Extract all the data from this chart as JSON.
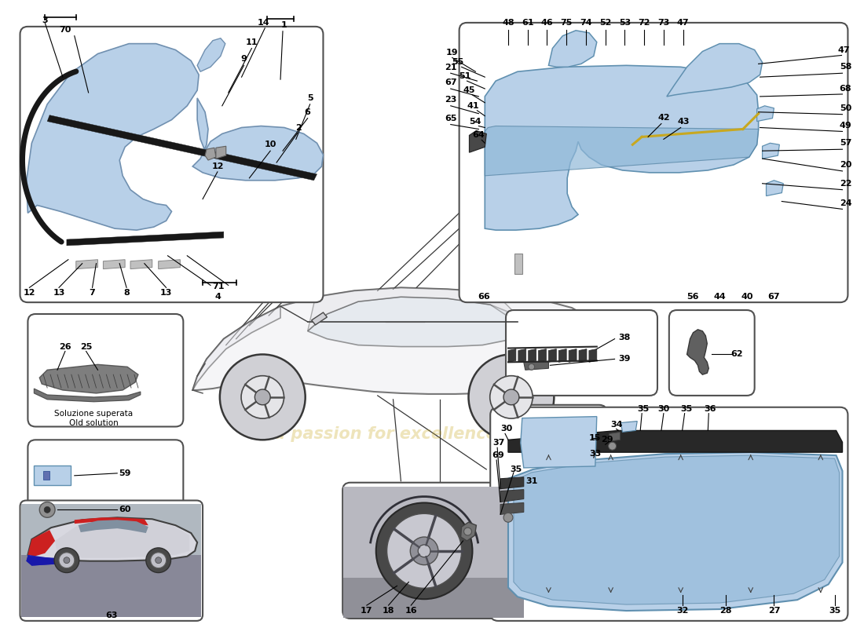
{
  "bg": "#ffffff",
  "blue": "#b8d0e8",
  "blue2": "#90b8d8",
  "dark": "#282828",
  "gray": "#888888",
  "gold": "#c8a820",
  "tc": "#000000",
  "fig_w": 11.0,
  "fig_h": 8.0,
  "dpi": 100,
  "boxes": {
    "tl": [
      20,
      415,
      390,
      355
    ],
    "tr": [
      585,
      415,
      500,
      360
    ],
    "ml1": [
      30,
      255,
      200,
      145
    ],
    "ml2": [
      30,
      90,
      200,
      148
    ],
    "photo": [
      20,
      5,
      235,
      155
    ],
    "rb38": [
      645,
      295,
      195,
      110
    ],
    "rb62": [
      855,
      295,
      110,
      110
    ],
    "rb15": [
      660,
      195,
      115,
      88
    ],
    "bm": [
      435,
      8,
      235,
      175
    ],
    "br": [
      625,
      5,
      460,
      275
    ]
  },
  "tl_numbers": [
    [
      52,
      778,
      "3"
    ],
    [
      78,
      766,
      "70"
    ],
    [
      333,
      775,
      "14"
    ],
    [
      360,
      772,
      "1"
    ],
    [
      318,
      750,
      "11"
    ],
    [
      308,
      728,
      "9"
    ],
    [
      393,
      678,
      "5"
    ],
    [
      378,
      640,
      "2"
    ],
    [
      390,
      660,
      "6"
    ],
    [
      342,
      618,
      "10"
    ],
    [
      275,
      590,
      "12"
    ],
    [
      32,
      427,
      "12"
    ],
    [
      70,
      427,
      "13"
    ],
    [
      113,
      427,
      "7"
    ],
    [
      157,
      427,
      "8"
    ],
    [
      208,
      427,
      "13"
    ],
    [
      275,
      435,
      "71"
    ],
    [
      275,
      422,
      "4"
    ]
  ],
  "tr_top": [
    [
      648,
      775,
      "48"
    ],
    [
      673,
      775,
      "61"
    ],
    [
      698,
      775,
      "46"
    ],
    [
      723,
      775,
      "75"
    ],
    [
      748,
      775,
      "74"
    ],
    [
      773,
      775,
      "52"
    ],
    [
      798,
      775,
      "53"
    ],
    [
      823,
      775,
      "72"
    ],
    [
      848,
      775,
      "73"
    ],
    [
      873,
      775,
      "47"
    ]
  ],
  "tr_left": [
    [
      576,
      737,
      "19"
    ],
    [
      574,
      717,
      "21"
    ],
    [
      574,
      698,
      "67"
    ],
    [
      574,
      676,
      "23"
    ],
    [
      574,
      652,
      "65"
    ],
    [
      583,
      724,
      "55"
    ],
    [
      592,
      706,
      "51"
    ],
    [
      598,
      688,
      "45"
    ],
    [
      603,
      668,
      "41"
    ],
    [
      606,
      648,
      "54"
    ],
    [
      610,
      630,
      "64"
    ]
  ],
  "tr_right": [
    [
      1080,
      740,
      "47"
    ],
    [
      1082,
      718,
      "58"
    ],
    [
      1082,
      690,
      "68"
    ],
    [
      1082,
      665,
      "50"
    ],
    [
      1082,
      643,
      "49"
    ],
    [
      1082,
      620,
      "57"
    ],
    [
      1082,
      592,
      "20"
    ],
    [
      1082,
      568,
      "22"
    ],
    [
      1082,
      542,
      "24"
    ],
    [
      848,
      653,
      "42"
    ],
    [
      874,
      648,
      "43"
    ]
  ],
  "tr_bottom": [
    [
      617,
      422,
      "66"
    ],
    [
      885,
      422,
      "56"
    ],
    [
      920,
      422,
      "44"
    ],
    [
      955,
      422,
      "40"
    ],
    [
      990,
      422,
      "67"
    ]
  ],
  "ml1_nums": [
    [
      78,
      358,
      "26"
    ],
    [
      105,
      358,
      "25"
    ]
  ],
  "ml2_nums": [
    [
      155,
      195,
      "59"
    ],
    [
      155,
      148,
      "60"
    ]
  ],
  "photo_num": [
    [
      128,
      12,
      "63"
    ]
  ],
  "rb38_nums": [
    [
      798,
      370,
      "38"
    ],
    [
      798,
      342,
      "39"
    ]
  ],
  "rb62_nums": [
    [
      942,
      348,
      "62"
    ]
  ],
  "rb15_nums": [
    [
      760,
      240,
      "15"
    ]
  ],
  "bm_nums": [
    [
      466,
      18,
      "17"
    ],
    [
      494,
      18,
      "18"
    ],
    [
      523,
      18,
      "16"
    ]
  ],
  "br_nums": [
    [
      822,
      278,
      "35"
    ],
    [
      848,
      278,
      "30"
    ],
    [
      877,
      278,
      "35"
    ],
    [
      908,
      278,
      "36"
    ],
    [
      788,
      258,
      "34"
    ],
    [
      775,
      238,
      "29"
    ],
    [
      760,
      220,
      "33"
    ],
    [
      646,
      252,
      "30"
    ],
    [
      636,
      234,
      "37"
    ],
    [
      635,
      218,
      "69"
    ],
    [
      658,
      200,
      "35"
    ],
    [
      678,
      185,
      "31"
    ],
    [
      872,
      18,
      "32"
    ],
    [
      928,
      18,
      "28"
    ],
    [
      990,
      18,
      "27"
    ],
    [
      1068,
      18,
      "35"
    ]
  ]
}
